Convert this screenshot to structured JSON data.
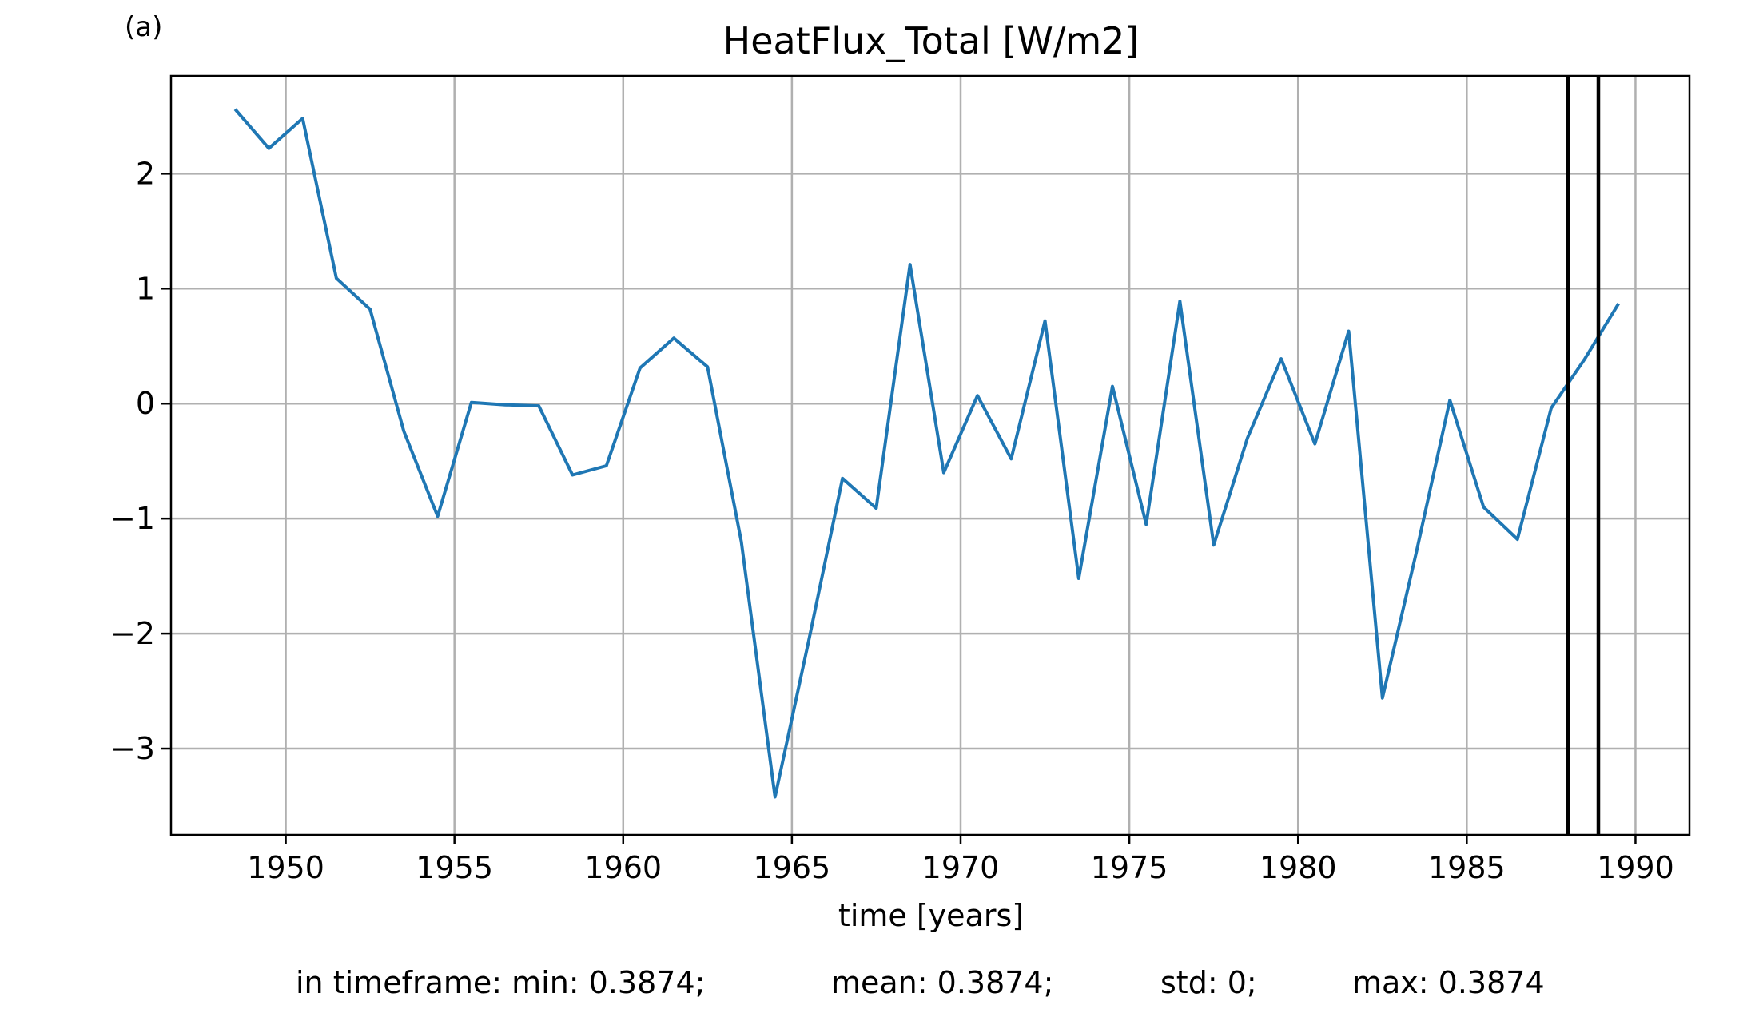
{
  "panel_label": "(a)",
  "chart_data": {
    "type": "line",
    "title": "HeatFlux_Total [W/m2]",
    "xlabel": "time [years]",
    "ylabel": "",
    "xlim": [
      1946.6,
      1991.6
    ],
    "ylim": [
      -3.75,
      2.85
    ],
    "grid": true,
    "xticks": [
      1950,
      1955,
      1960,
      1965,
      1970,
      1975,
      1980,
      1985,
      1990
    ],
    "yticks": [
      -3,
      -2,
      -1,
      0,
      1,
      2
    ],
    "ytick_labels": [
      "−3",
      "−2",
      "−1",
      "0",
      "1",
      "2"
    ],
    "series": [
      {
        "color": "#1f77b4",
        "x": [
          1948.5,
          1949.5,
          1950.5,
          1951.5,
          1952.5,
          1953.5,
          1954.5,
          1955.5,
          1956.5,
          1957.5,
          1958.5,
          1959.5,
          1960.5,
          1961.5,
          1962.5,
          1963.5,
          1964.5,
          1965.5,
          1966.5,
          1967.5,
          1968.5,
          1969.5,
          1970.5,
          1971.5,
          1972.5,
          1973.5,
          1974.5,
          1975.5,
          1976.5,
          1977.5,
          1978.5,
          1979.5,
          1980.5,
          1981.5,
          1982.5,
          1983.5,
          1984.5,
          1985.5,
          1986.5,
          1987.5,
          1988.5,
          1989.5
        ],
        "values": [
          2.56,
          2.22,
          2.48,
          1.09,
          0.82,
          -0.24,
          -0.98,
          0.01,
          -0.01,
          -0.02,
          -0.62,
          -0.54,
          0.31,
          0.57,
          0.32,
          -1.2,
          -3.42,
          -2.06,
          -0.65,
          -0.91,
          1.21,
          -0.6,
          0.07,
          -0.48,
          0.72,
          -1.52,
          0.15,
          -1.05,
          0.89,
          -1.23,
          -0.3,
          0.39,
          -0.35,
          0.63,
          -2.56,
          -1.3,
          0.03,
          -0.9,
          -1.18,
          -0.04,
          0.39,
          0.87
        ]
      }
    ],
    "vlines": [
      1988.0,
      1988.9
    ],
    "vline_color": "#000000"
  },
  "stats": {
    "min": "in timeframe: min: 0.3874;",
    "mean": "mean: 0.3874;",
    "std": "std: 0;",
    "max": "max: 0.3874"
  }
}
